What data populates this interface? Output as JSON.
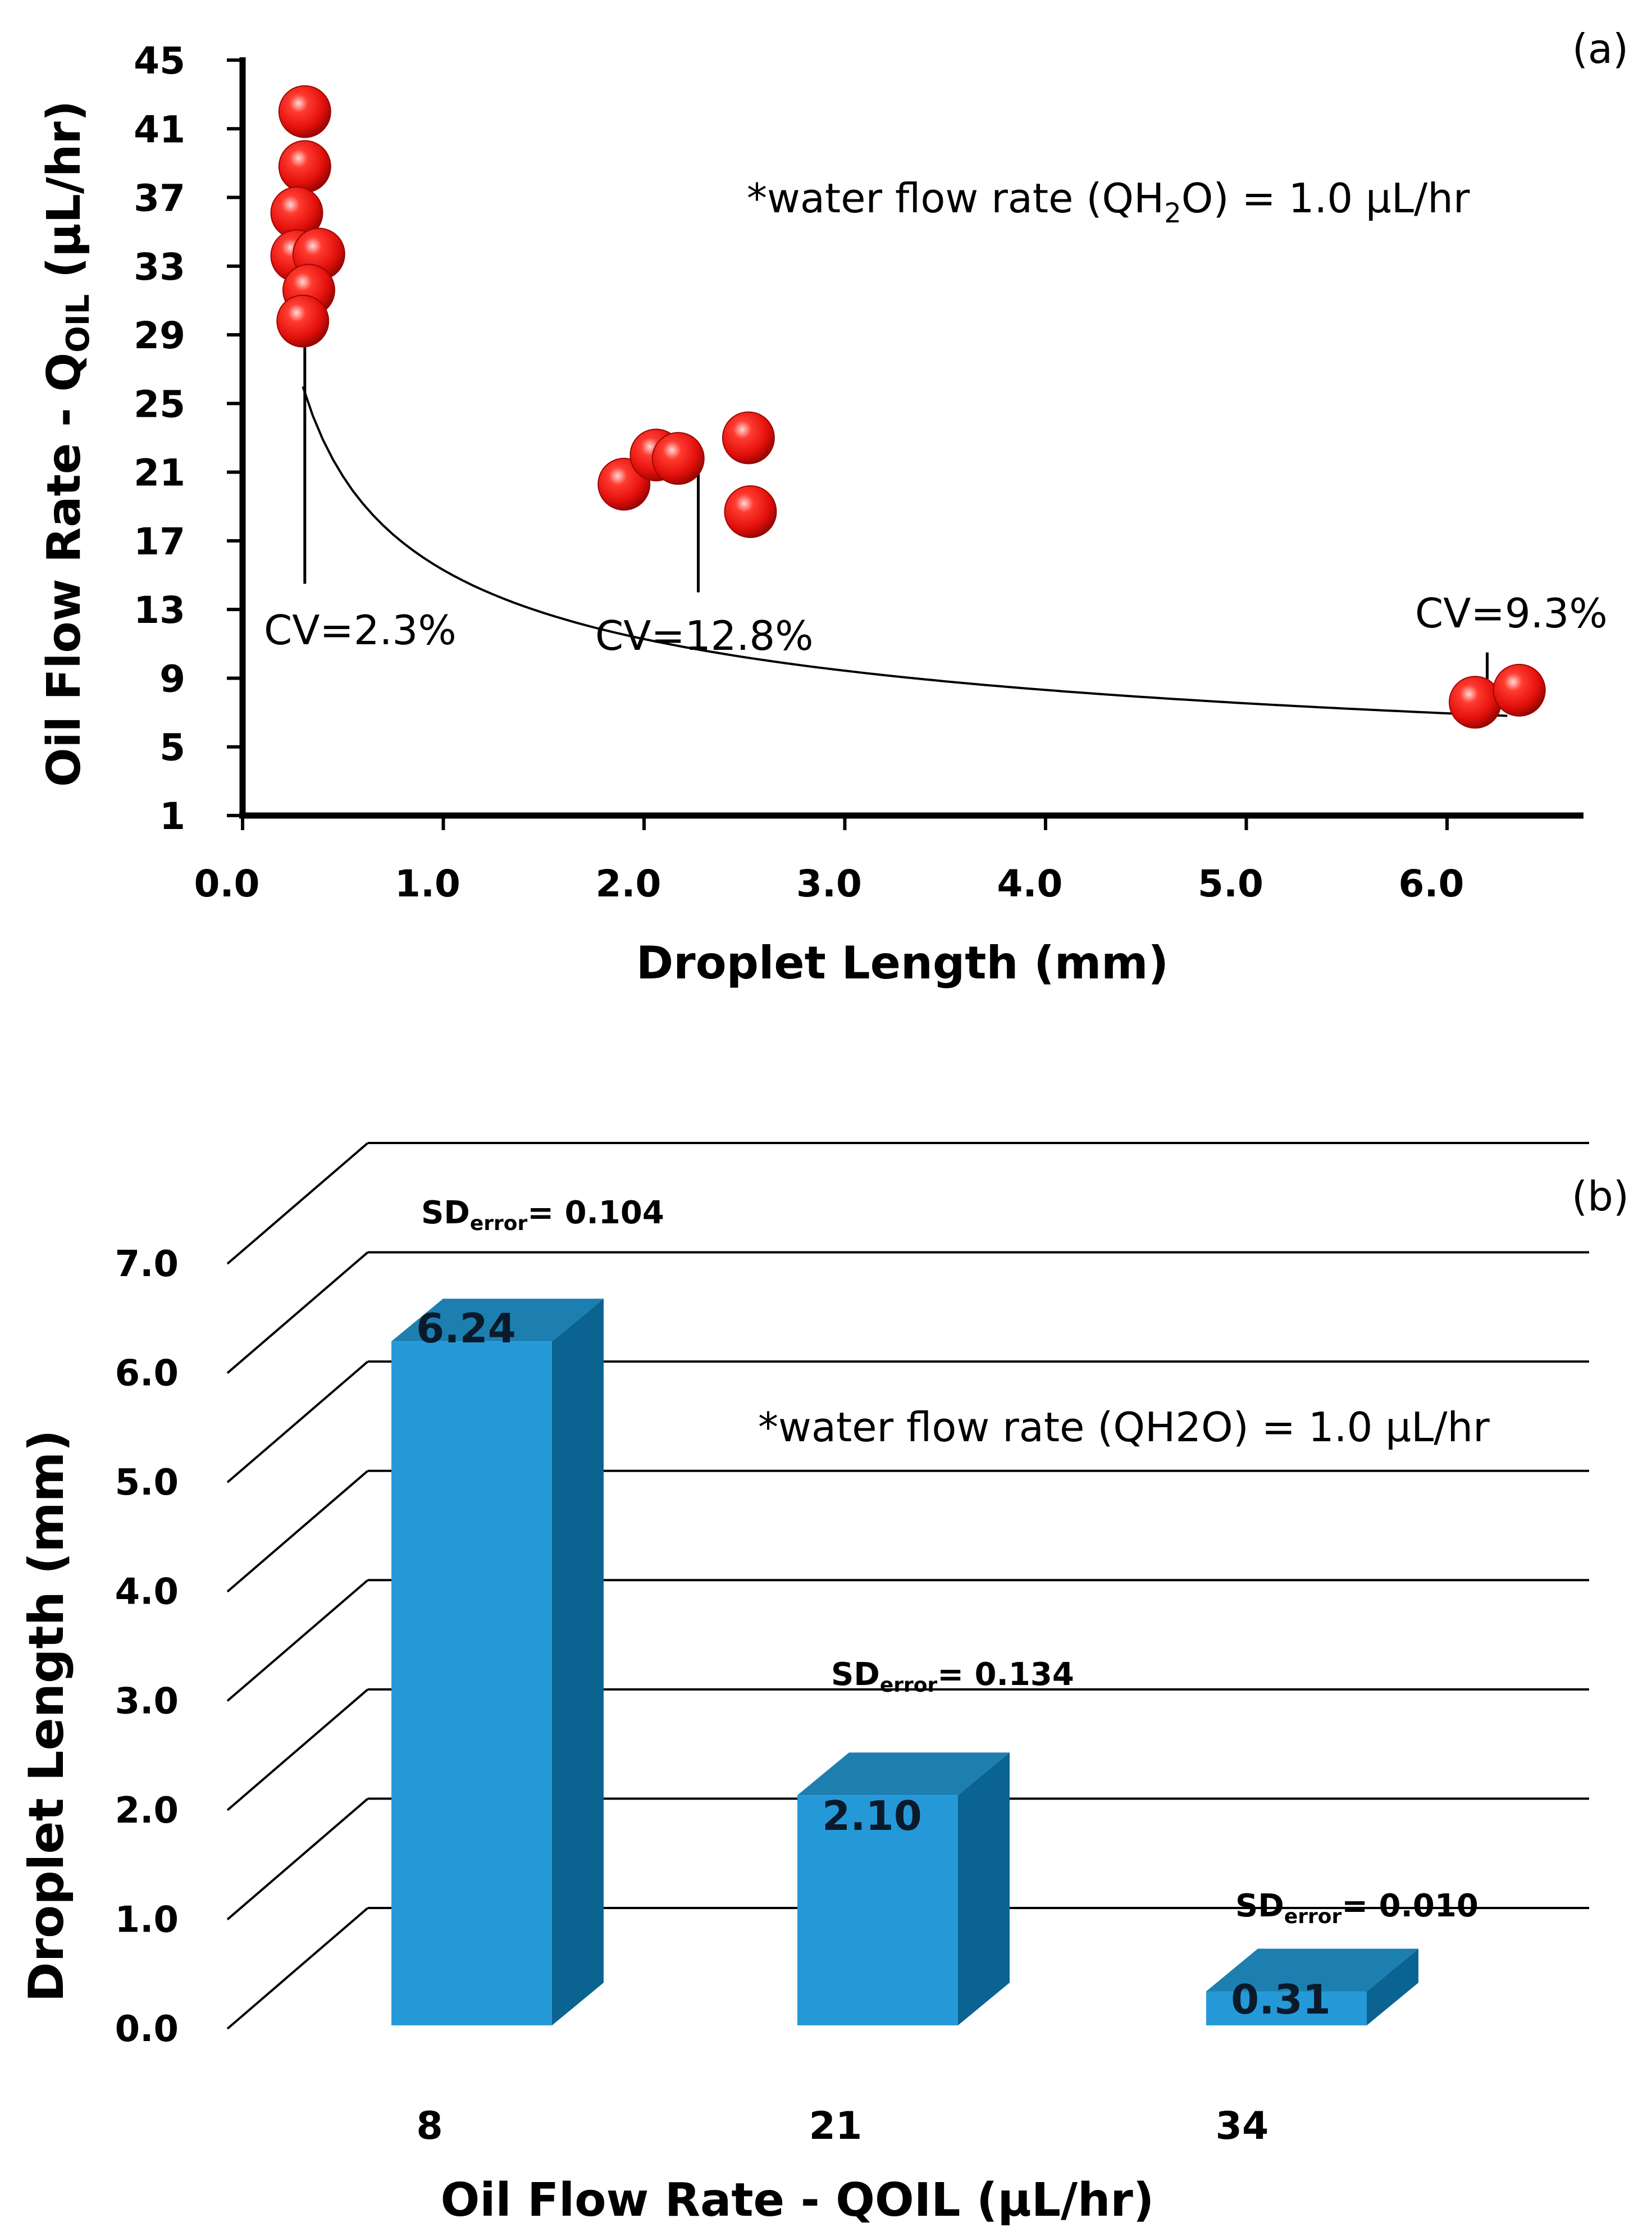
{
  "chart_data": [
    {
      "panel_label": "(a)",
      "type": "scatter",
      "xlabel": "Droplet Length (mm)",
      "ylabel_prefix": "Oil Flow Rate - Q",
      "ylabel_sub": "OIL",
      "ylabel_suffix": " (uL/hr)",
      "ylabel_unit": "(μL/hr)",
      "note_prefix": "*water flow rate (QH",
      "note_sub": "2",
      "note_suffix": "O) = 1.0 μL/hr",
      "x_ticks": [
        "0.0",
        "1.0",
        "2.0",
        "3.0",
        "4.0",
        "5.0",
        "6.0"
      ],
      "x_tick_values": [
        0,
        1,
        2,
        3,
        4,
        5,
        6
      ],
      "y_ticks": [
        "1",
        "5",
        "9",
        "13",
        "17",
        "21",
        "25",
        "29",
        "33",
        "37",
        "41",
        "45"
      ],
      "y_tick_values": [
        1,
        5,
        9,
        13,
        17,
        21,
        25,
        29,
        33,
        37,
        41,
        45
      ],
      "xlim": [
        0,
        6.6
      ],
      "ylim": [
        1,
        45
      ],
      "points": [
        {
          "x": 0.31,
          "y": 42.0
        },
        {
          "x": 0.31,
          "y": 38.8
        },
        {
          "x": 0.27,
          "y": 36.1
        },
        {
          "x": 0.27,
          "y": 33.6
        },
        {
          "x": 0.38,
          "y": 33.7
        },
        {
          "x": 0.33,
          "y": 31.6
        },
        {
          "x": 0.3,
          "y": 29.8
        },
        {
          "x": 1.9,
          "y": 20.3
        },
        {
          "x": 2.06,
          "y": 22.0
        },
        {
          "x": 2.17,
          "y": 21.8
        },
        {
          "x": 2.52,
          "y": 23.0
        },
        {
          "x": 2.53,
          "y": 18.7
        },
        {
          "x": 6.14,
          "y": 7.6
        },
        {
          "x": 6.36,
          "y": 8.3
        }
      ],
      "fit_curve": {
        "type": "power",
        "a": 15.3,
        "b": -0.44,
        "x_range": [
          0.3,
          6.3
        ]
      },
      "annotations": [
        {
          "label": "CV=2.3%",
          "x": 0.31,
          "y_line_top": 34.0,
          "y_line_bottom": 14.5
        },
        {
          "label": "CV=12.8%",
          "x": 2.27,
          "y_line_top": 21.5,
          "y_line_bottom": 14.0
        },
        {
          "label": "CV=9.3%",
          "x": 6.2,
          "y_line_top": 8.0,
          "y_line_bottom": 10.5
        }
      ],
      "point_color": "#e8100c",
      "curve_color": "#000000"
    },
    {
      "panel_label": "(b)",
      "type": "bar",
      "style": "3d",
      "xlabel": "Oil Flow Rate - QOIL (μL/hr)",
      "ylabel": "Droplet Length (mm)",
      "note": "*water flow rate (QH2O) = 1.0 μL/hr",
      "categories": [
        "8",
        "21",
        "34"
      ],
      "values": [
        6.24,
        2.1,
        0.31
      ],
      "value_labels": [
        "6.24",
        "2.10",
        "0.31"
      ],
      "sd_prefix": "SD",
      "sd_sub": "error",
      "sd_values": [
        "= 0.104",
        "= 0.134",
        "= 0.010"
      ],
      "y_ticks": [
        "0.0",
        "1.0",
        "2.0",
        "3.0",
        "4.0",
        "5.0",
        "6.0",
        "7.0"
      ],
      "y_tick_values": [
        0,
        1,
        2,
        3,
        4,
        5,
        6,
        7
      ],
      "ylim": [
        0,
        7
      ],
      "bar_front_color": "#2599d8",
      "bar_side_color": "#0a6390",
      "bar_top_color": "#1c7fb0"
    }
  ]
}
